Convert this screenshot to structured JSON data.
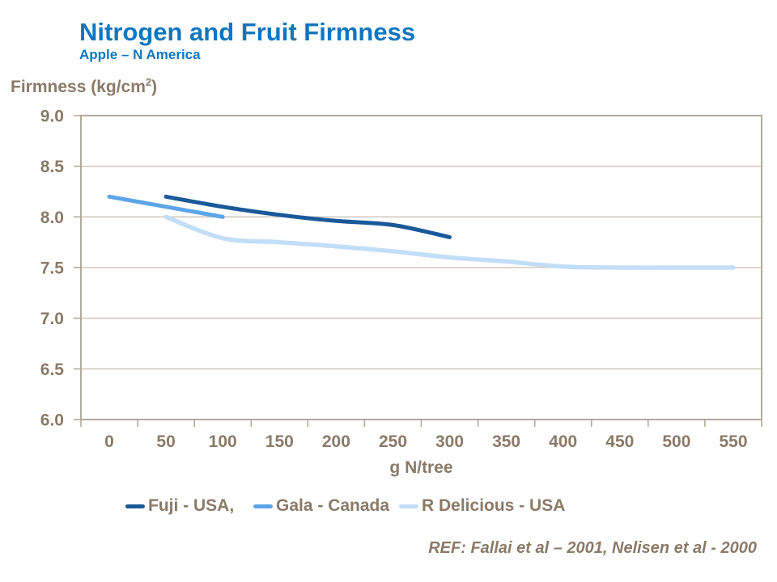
{
  "header": {
    "title": "Nitrogen and Fruit Firmness",
    "subtitle": "Apple – N America"
  },
  "y_axis_title": {
    "main": "Firmness (kg/cm",
    "sup": "2",
    "close": ")"
  },
  "footer": {
    "ref": "REF: Fallai et al – 2001, Nelisen et al - 2000"
  },
  "colors": {
    "title_blue": "#0e76c0",
    "text_brown": "#8a7a68",
    "axis_border": "#b2a99d",
    "gridline": "#c9c0b4"
  },
  "chart_data": {
    "type": "line",
    "title": "Nitrogen and Fruit Firmness",
    "subtitle": "Apple – N America",
    "xlabel": "g N/tree",
    "ylabel": "Firmness (kg/cm2)",
    "ylim": [
      6.0,
      9.0
    ],
    "y_tick_step": 0.5,
    "y_tick_labels": [
      "9.0",
      "8.5",
      "8.0",
      "7.5",
      "7.0",
      "6.5",
      "6.0"
    ],
    "categories": [
      0,
      50,
      100,
      150,
      200,
      250,
      300,
      350,
      400,
      450,
      500,
      550
    ],
    "x_tick_labels": [
      "0",
      "50",
      "100",
      "150",
      "200",
      "250",
      "300",
      "350",
      "400",
      "450",
      "500",
      "550"
    ],
    "grid": "horizontal",
    "legend_position": "bottom",
    "series": [
      {
        "name": "Fuji - USA,",
        "color": "#19599a",
        "stroke_width": 5,
        "points": [
          [
            50,
            8.2
          ],
          [
            100,
            8.1
          ],
          [
            150,
            8.02
          ],
          [
            200,
            7.96
          ],
          [
            250,
            7.92
          ],
          [
            300,
            7.8
          ]
        ]
      },
      {
        "name": "Gala - Canada",
        "color": "#5ca5e8",
        "stroke_width": 5,
        "points": [
          [
            0,
            8.2
          ],
          [
            50,
            8.1
          ],
          [
            100,
            8.0
          ]
        ]
      },
      {
        "name": "R Delicious - USA",
        "color": "#c2def6",
        "stroke_width": 5.5,
        "points": [
          [
            50,
            8.0
          ],
          [
            100,
            7.79
          ],
          [
            150,
            7.75
          ],
          [
            200,
            7.71
          ],
          [
            250,
            7.66
          ],
          [
            300,
            7.6
          ],
          [
            350,
            7.56
          ],
          [
            400,
            7.51
          ],
          [
            450,
            7.5
          ],
          [
            500,
            7.5
          ],
          [
            550,
            7.5
          ]
        ]
      }
    ]
  }
}
